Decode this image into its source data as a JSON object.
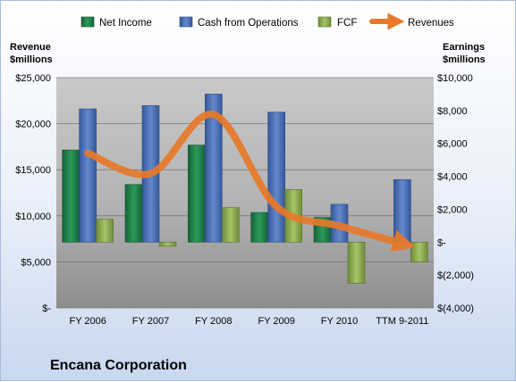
{
  "chart_data": {
    "type": "bar",
    "title": "Encana Corporation",
    "categories": [
      "FY 2006",
      "FY 2007",
      "FY 2008",
      "FY 2009",
      "FY 2010",
      "TTM 9-2011"
    ],
    "left_axis": {
      "label_lines": [
        "Revenue",
        "$millions"
      ],
      "ylim": [
        0,
        25000
      ],
      "ticks": [
        0,
        5000,
        10000,
        15000,
        20000,
        25000
      ],
      "tick_labels": [
        "$-",
        "$5,000",
        "$10,000",
        "$15,000",
        "$20,000",
        "$25,000"
      ]
    },
    "right_axis": {
      "label_lines": [
        "Earnings",
        "$millions"
      ],
      "ylim": [
        -4000,
        10000
      ],
      "ticks": [
        -4000,
        -2000,
        0,
        2000,
        4000,
        6000,
        8000,
        10000
      ],
      "tick_labels": [
        "$(4,000)",
        "$(2,000)",
        "$-",
        "$2,000",
        "$4,000",
        "$6,000",
        "$8,000",
        "$10,000"
      ]
    },
    "series": [
      {
        "name": "Net Income",
        "type": "bar",
        "axis": "right",
        "color": "#1e7a46",
        "values": [
          5600,
          3500,
          5900,
          1800,
          1500,
          0
        ]
      },
      {
        "name": "Cash from Operations",
        "type": "bar",
        "axis": "right",
        "color": "#4a72b5",
        "values": [
          8100,
          8300,
          9000,
          7900,
          2300,
          3800
        ]
      },
      {
        "name": "FCF",
        "type": "bar",
        "axis": "right",
        "color": "#8dab52",
        "values": [
          1400,
          -250,
          2100,
          3200,
          -2500,
          -1200
        ]
      },
      {
        "name": "Revenues",
        "type": "line",
        "axis": "left",
        "color": "#e8792a",
        "values": [
          16800,
          14600,
          21000,
          11000,
          8900,
          7000
        ]
      }
    ],
    "legend_position": "top",
    "grid": true
  }
}
